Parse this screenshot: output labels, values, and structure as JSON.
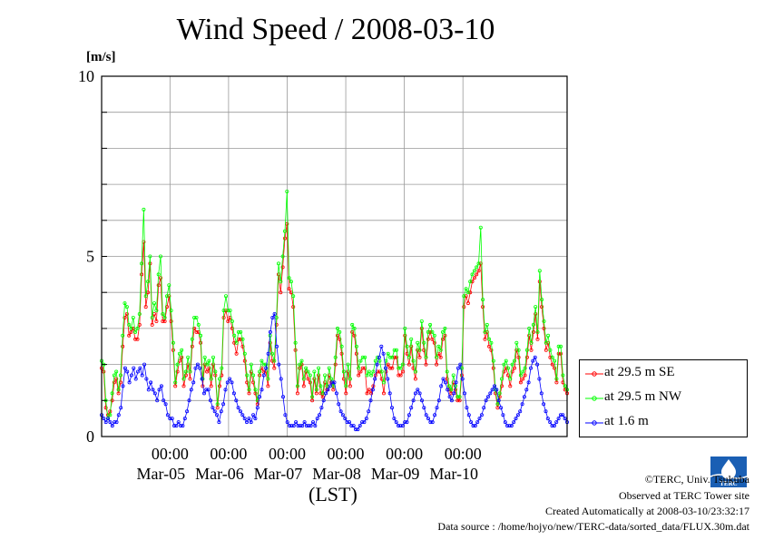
{
  "page": {
    "copyright": "©TERC, Univ. Tsukuba",
    "observed": "Observed at TERC Tower site",
    "created": "Created Automatically at 2008-03-10/23:32:17",
    "source": "Data source : /home/hojyo/new/TERC-data/sorted_data/FLUX.30m.dat",
    "logo_text": "TERC"
  },
  "chart_data": {
    "type": "line",
    "title": "Wind Speed / 2008-03-10",
    "ylabel": "[m/s]",
    "xlabel": "(LST)",
    "ylim": [
      0,
      10
    ],
    "y_ticks": [
      0,
      5,
      10
    ],
    "xlim": [
      0,
      143
    ],
    "x_ticks": [
      {
        "pos": 21,
        "time": "00:00",
        "date": "Mar-05"
      },
      {
        "pos": 39,
        "time": "00:00",
        "date": "Mar-06"
      },
      {
        "pos": 57,
        "time": "00:00",
        "date": "Mar-07"
      },
      {
        "pos": 75,
        "time": "00:00",
        "date": "Mar-08"
      },
      {
        "pos": 93,
        "time": "00:00",
        "date": "Mar-09"
      },
      {
        "pos": 111,
        "time": "00:00",
        "date": "Mar-10"
      }
    ],
    "grid": true,
    "legend_position": "right",
    "series": [
      {
        "name": "at 29.5 m SE",
        "color": "#ff0000",
        "values": [
          1.9,
          1.8,
          0.8,
          0.6,
          0.7,
          1.0,
          1.5,
          1.6,
          1.2,
          1.5,
          2.5,
          3.3,
          3.4,
          2.8,
          2.9,
          3.0,
          2.7,
          2.7,
          3.1,
          4.5,
          5.4,
          3.6,
          4.0,
          4.8,
          3.1,
          3.4,
          3.2,
          4.2,
          4.4,
          3.2,
          3.2,
          3.6,
          3.9,
          3.2,
          2.4,
          1.4,
          1.8,
          2.1,
          2.2,
          1.4,
          1.7,
          2.0,
          1.6,
          2.5,
          3.0,
          2.9,
          2.9,
          2.6,
          1.4,
          2.0,
          1.8,
          1.9,
          1.4,
          2.0,
          1.7,
          0.8,
          1.4,
          1.7,
          3.3,
          3.5,
          3.2,
          3.3,
          3.0,
          2.6,
          2.3,
          2.7,
          2.7,
          2.5,
          2.1,
          1.5,
          1.2,
          1.8,
          1.5,
          1.2,
          0.9,
          1.7,
          1.9,
          1.8,
          1.8,
          1.4,
          2.6,
          2.1,
          1.9,
          3.1,
          4.5,
          4.0,
          4.7,
          5.5,
          5.9,
          4.1,
          4.0,
          3.6,
          2.4,
          1.2,
          1.9,
          2.0,
          1.4,
          1.8,
          1.6,
          1.5,
          1.0,
          1.6,
          1.2,
          1.7,
          1.2,
          1.1,
          1.5,
          1.3,
          1.7,
          1.5,
          1.3,
          2.0,
          2.8,
          2.7,
          2.3,
          1.6,
          1.2,
          1.8,
          1.4,
          2.9,
          2.8,
          2.3,
          1.7,
          1.8,
          1.9,
          1.9,
          1.2,
          1.3,
          1.2,
          1.4,
          1.7,
          1.8,
          1.8,
          1.6,
          1.2,
          1.8,
          2.0,
          1.9,
          1.9,
          2.2,
          2.2,
          1.7,
          1.7,
          1.8,
          2.8,
          2.3,
          2.0,
          2.5,
          1.9,
          1.6,
          2.4,
          2.2,
          3.0,
          2.4,
          2.0,
          2.7,
          2.9,
          2.7,
          2.6,
          2.0,
          2.3,
          2.2,
          2.7,
          2.8,
          1.6,
          1.3,
          1.2,
          1.5,
          1.3,
          1.0,
          1.0,
          1.7,
          3.6,
          3.9,
          3.7,
          4.0,
          4.3,
          4.4,
          4.5,
          4.6,
          4.8,
          3.6,
          2.7,
          2.9,
          2.5,
          2.4,
          1.9,
          1.2,
          0.8,
          1.1,
          1.4,
          1.8,
          1.9,
          1.7,
          1.4,
          1.8,
          1.9,
          2.4,
          2.2,
          1.5,
          1.6,
          1.7,
          2.2,
          2.8,
          2.4,
          2.9,
          3.4,
          2.7,
          4.3,
          3.6,
          3.0,
          2.4,
          2.6,
          2.2,
          2.0,
          1.9,
          1.5,
          2.3,
          2.3,
          1.5,
          1.3,
          1.2
        ]
      },
      {
        "name": "at 29.5 m NW",
        "color": "#00ff00",
        "values": [
          2.1,
          2.0,
          1.0,
          0.5,
          0.6,
          1.2,
          1.7,
          1.8,
          1.3,
          1.7,
          2.8,
          3.7,
          3.6,
          3.1,
          3.0,
          3.3,
          2.9,
          3.0,
          3.4,
          4.8,
          6.3,
          3.9,
          4.3,
          5.0,
          3.3,
          3.7,
          3.5,
          4.5,
          5.0,
          3.4,
          3.3,
          3.9,
          4.2,
          3.5,
          2.6,
          1.5,
          2.0,
          2.3,
          2.4,
          1.6,
          1.8,
          2.2,
          1.8,
          2.7,
          3.3,
          3.3,
          3.1,
          2.8,
          1.6,
          2.2,
          2.0,
          2.1,
          1.6,
          2.2,
          1.8,
          0.9,
          1.6,
          1.9,
          3.5,
          3.9,
          3.5,
          3.5,
          3.2,
          2.8,
          2.6,
          2.9,
          2.9,
          2.7,
          2.3,
          1.7,
          1.3,
          2.0,
          1.7,
          1.3,
          1.0,
          1.8,
          2.1,
          2.0,
          2.0,
          1.6,
          2.8,
          2.3,
          2.1,
          3.3,
          4.8,
          4.3,
          5.0,
          5.7,
          6.8,
          4.4,
          4.3,
          3.9,
          2.6,
          1.4,
          2.0,
          2.1,
          1.6,
          1.9,
          1.8,
          1.7,
          1.1,
          1.8,
          1.3,
          1.9,
          1.4,
          1.2,
          1.7,
          1.4,
          1.9,
          1.6,
          1.4,
          2.2,
          3.0,
          2.9,
          2.5,
          1.8,
          1.4,
          2.0,
          1.6,
          3.1,
          3.0,
          2.5,
          1.9,
          2.1,
          2.2,
          2.2,
          1.7,
          1.8,
          1.7,
          1.8,
          2.1,
          2.2,
          2.1,
          1.8,
          1.5,
          2.1,
          2.3,
          2.2,
          2.2,
          2.4,
          2.4,
          1.9,
          1.9,
          2.0,
          3.0,
          2.5,
          2.2,
          2.7,
          2.1,
          1.8,
          2.6,
          2.4,
          3.2,
          2.6,
          2.2,
          2.9,
          3.1,
          2.9,
          2.8,
          2.2,
          2.5,
          2.4,
          2.9,
          3.0,
          1.8,
          1.4,
          1.3,
          1.7,
          1.4,
          1.1,
          1.1,
          1.9,
          3.9,
          4.1,
          4.0,
          4.3,
          4.5,
          4.6,
          4.7,
          4.8,
          5.8,
          3.8,
          2.9,
          3.1,
          2.7,
          2.6,
          2.1,
          1.3,
          0.9,
          1.2,
          1.6,
          2.0,
          2.1,
          1.9,
          1.6,
          2.0,
          2.1,
          2.6,
          2.4,
          1.7,
          1.8,
          1.9,
          2.4,
          3.0,
          2.6,
          3.1,
          3.6,
          2.9,
          4.6,
          3.8,
          3.2,
          2.6,
          2.8,
          2.4,
          2.2,
          2.1,
          1.6,
          2.5,
          2.5,
          1.7,
          1.4,
          1.3
        ]
      },
      {
        "name": "at 1.6 m",
        "color": "#0000ff",
        "values": [
          0.6,
          0.5,
          0.4,
          0.5,
          0.4,
          0.3,
          0.4,
          0.4,
          0.6,
          0.8,
          1.4,
          1.9,
          1.8,
          1.5,
          1.7,
          1.9,
          1.6,
          1.8,
          1.9,
          1.7,
          2.0,
          1.6,
          1.3,
          1.5,
          1.3,
          1.2,
          1.0,
          1.3,
          1.4,
          1.0,
          0.9,
          0.6,
          0.5,
          0.5,
          0.3,
          0.3,
          0.4,
          0.3,
          0.3,
          0.5,
          0.7,
          1.0,
          1.3,
          1.5,
          1.9,
          2.0,
          1.9,
          1.6,
          1.2,
          1.3,
          1.3,
          1.0,
          0.8,
          0.7,
          0.6,
          0.4,
          0.7,
          0.9,
          1.3,
          1.5,
          1.6,
          1.5,
          1.2,
          1.0,
          0.8,
          0.7,
          0.6,
          0.5,
          0.4,
          0.5,
          0.4,
          0.6,
          0.5,
          0.8,
          1.1,
          1.3,
          1.7,
          1.9,
          2.3,
          2.9,
          3.3,
          3.4,
          2.5,
          2.0,
          1.6,
          1.1,
          0.6,
          0.4,
          0.3,
          0.3,
          0.3,
          0.4,
          0.3,
          0.3,
          0.3,
          0.4,
          0.3,
          0.3,
          0.3,
          0.4,
          0.3,
          0.5,
          0.6,
          0.8,
          1.0,
          1.2,
          1.3,
          1.4,
          1.5,
          1.5,
          1.2,
          0.9,
          0.7,
          0.6,
          0.5,
          0.4,
          0.4,
          0.3,
          0.3,
          0.2,
          0.2,
          0.3,
          0.4,
          0.4,
          0.5,
          0.7,
          1.0,
          1.3,
          1.6,
          2.0,
          2.2,
          2.5,
          2.3,
          1.9,
          1.6,
          1.2,
          0.8,
          0.5,
          0.4,
          0.3,
          0.3,
          0.3,
          0.4,
          0.4,
          0.6,
          0.8,
          1.0,
          1.2,
          1.3,
          1.2,
          1.0,
          0.8,
          0.6,
          0.5,
          0.4,
          0.4,
          0.6,
          0.8,
          1.0,
          1.4,
          1.6,
          1.5,
          1.3,
          1.1,
          1.0,
          1.2,
          1.5,
          1.9,
          2.0,
          1.6,
          1.2,
          0.8,
          0.6,
          0.4,
          0.3,
          0.3,
          0.4,
          0.5,
          0.6,
          0.8,
          1.0,
          1.1,
          1.2,
          1.3,
          1.4,
          1.3,
          1.0,
          0.8,
          0.6,
          0.4,
          0.3,
          0.3,
          0.3,
          0.4,
          0.5,
          0.6,
          0.7,
          0.9,
          1.1,
          1.3,
          1.5,
          1.9,
          2.1,
          2.2,
          2.0,
          1.6,
          1.2,
          0.9,
          0.7,
          0.5,
          0.4,
          0.3,
          0.3,
          0.4,
          0.5,
          0.6,
          0.6,
          0.5,
          0.4
        ]
      }
    ]
  }
}
